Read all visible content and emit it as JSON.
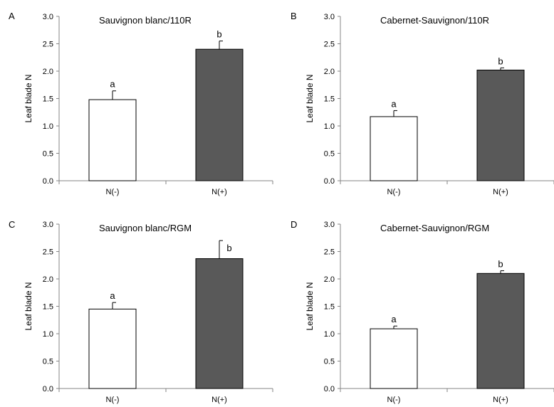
{
  "figure": {
    "panel_labels": [
      "A",
      "B",
      "C",
      "D"
    ]
  },
  "colors": {
    "n_minus_fill": "#ffffff",
    "n_plus_fill": "#595959",
    "bar_stroke": "#000000",
    "axis": "#868686"
  },
  "chart_data": [
    {
      "type": "bar",
      "panel": "A",
      "title": "Sauvignon blanc/110R",
      "xlabel": "",
      "ylabel": "Leaf blade N",
      "ylim": [
        0,
        3.0
      ],
      "yticks": [
        "0.0",
        "0.5",
        "1.0",
        "1.5",
        "2.0",
        "2.5",
        "3.0"
      ],
      "categories": [
        "N(-)",
        "N(+)"
      ],
      "values": [
        1.48,
        2.4
      ],
      "errors": [
        0.16,
        0.15
      ],
      "letters": [
        "a",
        "b"
      ],
      "grid": false,
      "legend": "none"
    },
    {
      "type": "bar",
      "panel": "B",
      "title": "Cabernet-Sauvignon/110R",
      "xlabel": "",
      "ylabel": "Leaf blade N",
      "ylim": [
        0,
        3.0
      ],
      "yticks": [
        "0.0",
        "0.5",
        "1.0",
        "1.5",
        "2.0",
        "2.5",
        "3.0"
      ],
      "categories": [
        "N(-)",
        "N(+)"
      ],
      "values": [
        1.17,
        2.02
      ],
      "errors": [
        0.11,
        0.04
      ],
      "letters": [
        "a",
        "b"
      ],
      "grid": false,
      "legend": "none"
    },
    {
      "type": "bar",
      "panel": "C",
      "title": "Sauvignon blanc/RGM",
      "xlabel": "",
      "ylabel": "Leaf blade N",
      "ylim": [
        0,
        3.0
      ],
      "yticks": [
        "0.0",
        "0.5",
        "1.0",
        "1.5",
        "2.0",
        "2.5",
        "3.0"
      ],
      "categories": [
        "N(-)",
        "N(+)"
      ],
      "values": [
        1.45,
        2.37
      ],
      "errors": [
        0.12,
        0.33
      ],
      "letters": [
        "a",
        "b"
      ],
      "grid": false,
      "legend": "none"
    },
    {
      "type": "bar",
      "panel": "D",
      "title": "Cabernet-Sauvignon/RGM",
      "xlabel": "",
      "ylabel": "Leaf blade N",
      "ylim": [
        0,
        3.0
      ],
      "yticks": [
        "0.0",
        "0.5",
        "1.0",
        "1.5",
        "2.0",
        "2.5",
        "3.0"
      ],
      "categories": [
        "N(-)",
        "N(+)"
      ],
      "values": [
        1.09,
        2.1
      ],
      "errors": [
        0.05,
        0.05
      ],
      "letters": [
        "a",
        "b"
      ],
      "grid": false,
      "legend": "none"
    }
  ]
}
